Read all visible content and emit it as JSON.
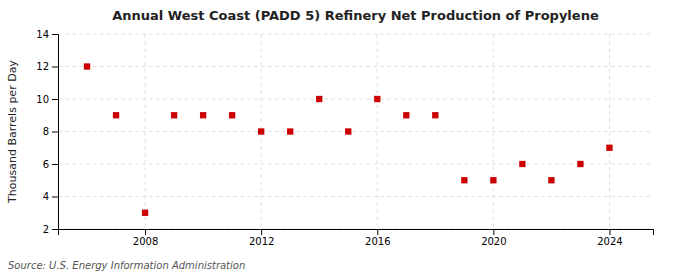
{
  "chart_data": {
    "type": "scatter",
    "title": "Annual West Coast (PADD 5) Refinery Net Production of Propylene",
    "ylabel": "Thousand Barrels per Day",
    "source": "Source: U.S. Energy Information Administration",
    "x": [
      2006,
      2007,
      2008,
      2009,
      2010,
      2011,
      2012,
      2013,
      2014,
      2015,
      2016,
      2017,
      2018,
      2019,
      2020,
      2021,
      2022,
      2023,
      2024
    ],
    "values": [
      12,
      9,
      3,
      9,
      9,
      9,
      8,
      8,
      10,
      8,
      10,
      9,
      9,
      5,
      5,
      6,
      5,
      6,
      7
    ],
    "xlim": [
      2005.0,
      2025.5
    ],
    "xticks": [
      2008,
      2012,
      2016,
      2020,
      2024
    ],
    "ylim": [
      2,
      14
    ],
    "yticks": [
      2,
      4,
      6,
      8,
      10,
      12,
      14
    ],
    "color": "#cc0000",
    "marker": "square",
    "grid": true
  }
}
